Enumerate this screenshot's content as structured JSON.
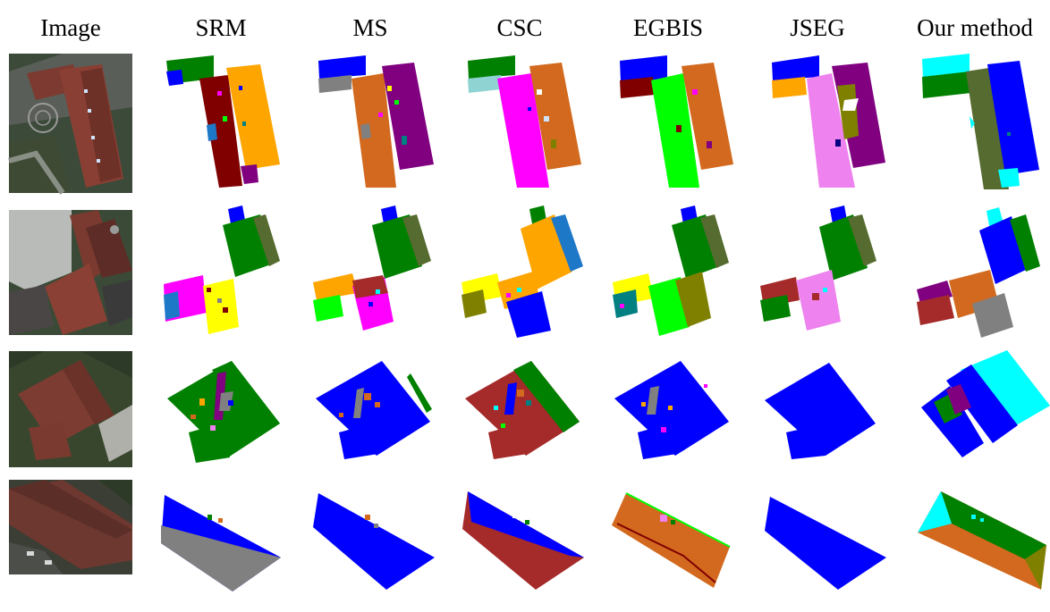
{
  "figure": {
    "columns": [
      "Image",
      "SRM",
      "MS",
      "CSC",
      "EGBIS",
      "JSEG",
      "Our method"
    ]
  },
  "colors": {
    "blue": "#0000ff",
    "green": "#008000",
    "olive": "#556b2f",
    "orange": "#ffa500",
    "purple": "#800080",
    "maroon": "#800000",
    "darkred": "#a52a2a",
    "chocolate": "#d2691e",
    "magenta": "#ff00ff",
    "lime": "#00ff00",
    "yellow": "#ffff00",
    "cyan": "#00ffff",
    "gray": "#808080",
    "teal": "#008080",
    "steelblue": "#1e78c8",
    "violet": "#ee82ee",
    "darkolive": "#808000"
  }
}
